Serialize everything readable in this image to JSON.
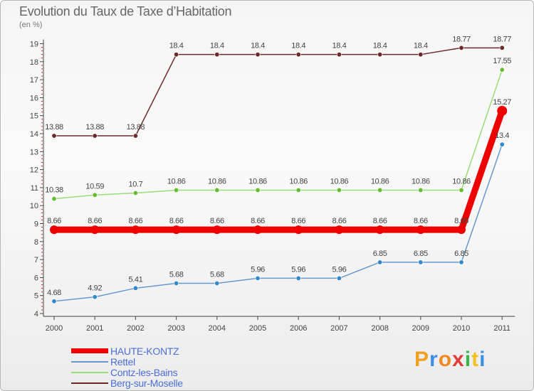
{
  "chart_data": {
    "type": "line",
    "title": "Evolution du Taux de Taxe d'Habitation",
    "ylabel": "(en %)",
    "x": [
      "2000",
      "2001",
      "2002",
      "2003",
      "2004",
      "2005",
      "2006",
      "2007",
      "2008",
      "2009",
      "2010",
      "2011"
    ],
    "ylim": [
      4,
      19
    ],
    "yticks": [
      4,
      5,
      6,
      7,
      8,
      9,
      10,
      11,
      12,
      13,
      14,
      15,
      16,
      17,
      18,
      19
    ],
    "grid": false,
    "series": [
      {
        "name": "Berg-sur-Moselle",
        "color": "#6b2a2a",
        "emphasis": false,
        "values": [
          13.88,
          13.88,
          13.88,
          18.4,
          18.4,
          18.4,
          18.4,
          18.4,
          18.4,
          18.4,
          18.77,
          18.77
        ],
        "labels": [
          "13.88",
          "13.88",
          "13.88",
          "18.4",
          "18.4",
          "18.4",
          "18.4",
          "18.4",
          "18.4",
          "18.4",
          "18.77",
          "18.77"
        ]
      },
      {
        "name": "Contz-les-Bains",
        "color": "#99dd77",
        "marker": "#66bb33",
        "emphasis": false,
        "values": [
          10.38,
          10.59,
          10.7,
          10.86,
          10.86,
          10.86,
          10.86,
          10.86,
          10.86,
          10.86,
          10.86,
          17.55
        ],
        "labels": [
          "10.38",
          "10.59",
          "10.7",
          "10.86",
          "10.86",
          "10.86",
          "10.86",
          "10.86",
          "10.86",
          "10.86",
          "10.86",
          "17.55"
        ]
      },
      {
        "name": "HAUTE-KONTZ",
        "color": "#ee0000",
        "emphasis": true,
        "values": [
          8.66,
          8.66,
          8.66,
          8.66,
          8.66,
          8.66,
          8.66,
          8.66,
          8.66,
          8.66,
          8.66,
          15.27
        ],
        "labels": [
          "8.66",
          "8.66",
          "8.66",
          "8.66",
          "8.66",
          "8.66",
          "8.66",
          "8.66",
          "8.66",
          "8.66",
          "8.66",
          "15.27"
        ]
      },
      {
        "name": "Rettel",
        "color": "#6699cc",
        "marker": "#3388cc",
        "emphasis": false,
        "values": [
          4.68,
          4.92,
          5.41,
          5.68,
          5.68,
          5.96,
          5.96,
          5.96,
          6.85,
          6.85,
          6.85,
          13.4
        ],
        "labels": [
          "4.68",
          "4.92",
          "5.41",
          "5.68",
          "5.68",
          "5.96",
          "5.96",
          "5.96",
          "6.85",
          "6.85",
          "6.85",
          "13.4"
        ]
      }
    ],
    "legend": {
      "placement": "bottom-left",
      "items": [
        {
          "label": "HAUTE-KONTZ",
          "color": "#ee0000"
        },
        {
          "label": "Rettel",
          "color": "#6699cc"
        },
        {
          "label": "Contz-les-Bains",
          "color": "#99dd77"
        },
        {
          "label": "Berg-sur-Moselle",
          "color": "#6b2a2a"
        }
      ]
    }
  },
  "header": {
    "title": "Evolution du Taux de Taxe d’Habitation",
    "subtitle": "(en %)"
  },
  "brand": {
    "letters": [
      "P",
      "r",
      "o",
      "x",
      "i",
      "t",
      "i"
    ],
    "colors": [
      "#f0a020",
      "#3a8ee6",
      "#f08a20",
      "#e23b3b",
      "#3bb54a",
      "#f0c020",
      "#3a8ee6"
    ]
  }
}
